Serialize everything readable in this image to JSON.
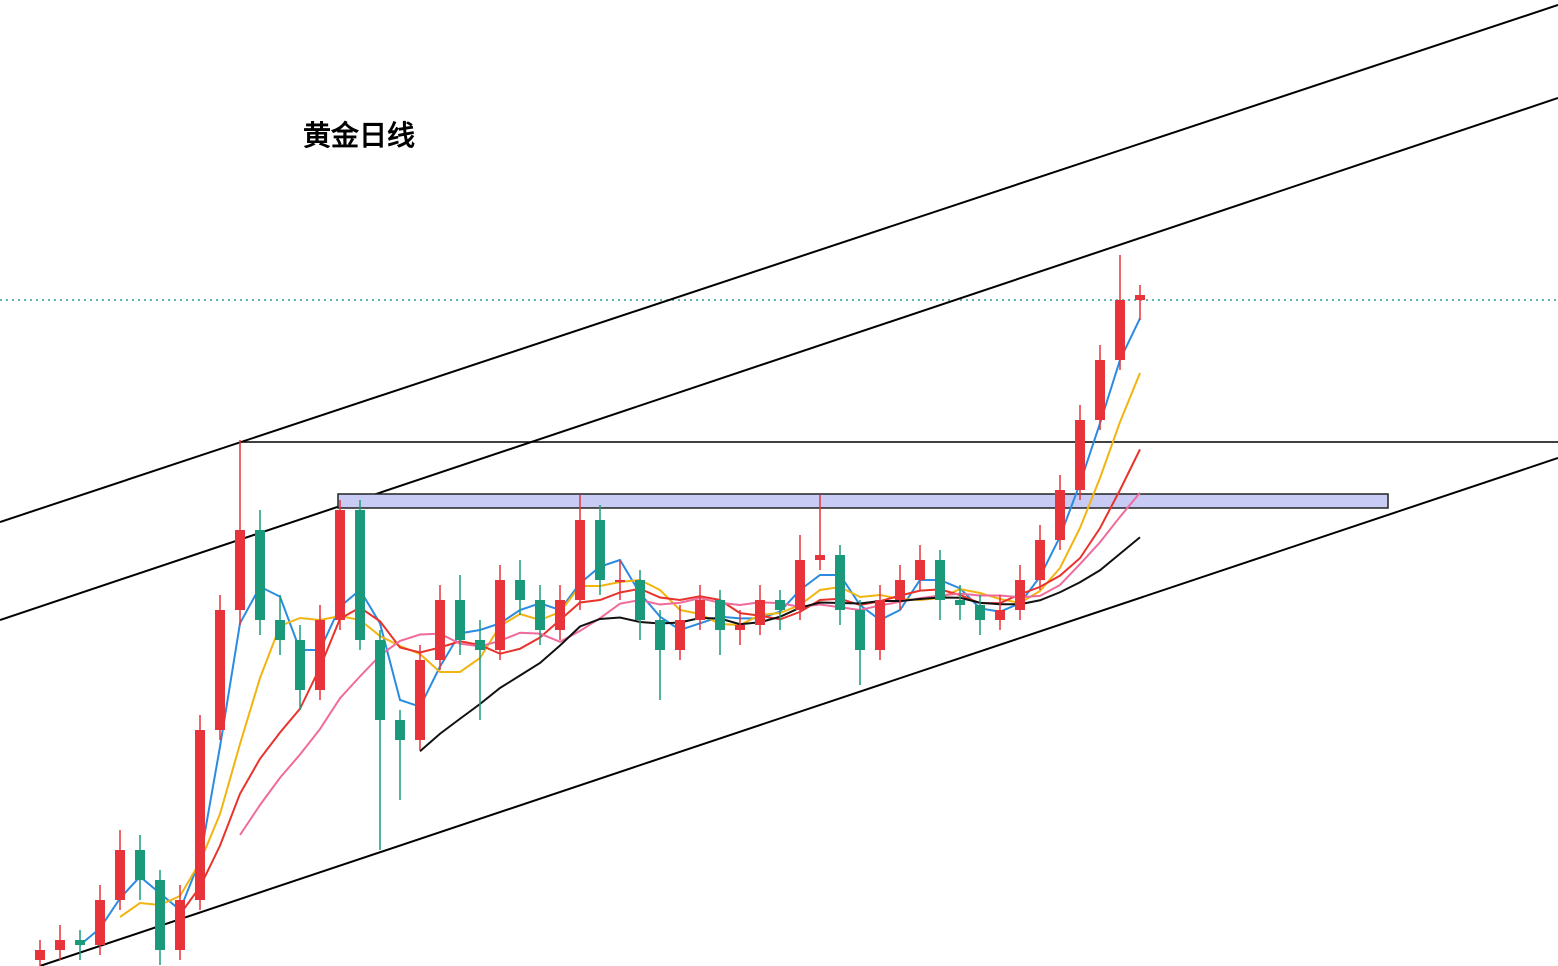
{
  "chart_data": {
    "type": "candlestick",
    "title": "黄金日线",
    "ylim": [
      1534,
      2500
    ],
    "up_color": "#e8333a",
    "down_color": "#1a9a7a",
    "ohlc": [
      [
        1540,
        1560,
        1530,
        1550
      ],
      [
        1550,
        1575,
        1540,
        1560
      ],
      [
        1560,
        1570,
        1540,
        1555
      ],
      [
        1555,
        1615,
        1545,
        1600
      ],
      [
        1600,
        1670,
        1590,
        1650
      ],
      [
        1650,
        1665,
        1600,
        1620
      ],
      [
        1620,
        1630,
        1535,
        1550
      ],
      [
        1550,
        1615,
        1540,
        1600
      ],
      [
        1600,
        1785,
        1590,
        1770
      ],
      [
        1770,
        1905,
        1760,
        1890
      ],
      [
        1890,
        2060,
        1875,
        1970
      ],
      [
        1970,
        1990,
        1865,
        1880
      ],
      [
        1880,
        1905,
        1845,
        1860
      ],
      [
        1860,
        1875,
        1790,
        1810
      ],
      [
        1810,
        1895,
        1800,
        1880
      ],
      [
        1880,
        2000,
        1870,
        1990
      ],
      [
        1990,
        2000,
        1850,
        1860
      ],
      [
        1860,
        1870,
        1650,
        1780
      ],
      [
        1780,
        1790,
        1700,
        1760
      ],
      [
        1760,
        1855,
        1750,
        1840
      ],
      [
        1840,
        1915,
        1830,
        1900
      ],
      [
        1900,
        1925,
        1845,
        1860
      ],
      [
        1860,
        1880,
        1780,
        1850
      ],
      [
        1850,
        1935,
        1840,
        1920
      ],
      [
        1920,
        1940,
        1885,
        1900
      ],
      [
        1900,
        1915,
        1855,
        1870
      ],
      [
        1870,
        1915,
        1860,
        1900
      ],
      [
        1900,
        2005,
        1890,
        1980
      ],
      [
        1980,
        1995,
        1905,
        1920
      ],
      [
        1920,
        1940,
        1900,
        1920
      ],
      [
        1920,
        1930,
        1860,
        1880
      ],
      [
        1880,
        1890,
        1800,
        1850
      ],
      [
        1850,
        1895,
        1840,
        1880
      ],
      [
        1880,
        1915,
        1870,
        1900
      ],
      [
        1900,
        1910,
        1845,
        1870
      ],
      [
        1870,
        1890,
        1855,
        1875
      ],
      [
        1875,
        1915,
        1865,
        1900
      ],
      [
        1900,
        1910,
        1870,
        1890
      ],
      [
        1890,
        1965,
        1880,
        1940
      ],
      [
        1940,
        2005,
        1930,
        1945
      ],
      [
        1945,
        1955,
        1875,
        1890
      ],
      [
        1890,
        1900,
        1815,
        1850
      ],
      [
        1850,
        1915,
        1840,
        1900
      ],
      [
        1900,
        1935,
        1890,
        1920
      ],
      [
        1920,
        1955,
        1910,
        1940
      ],
      [
        1940,
        1950,
        1880,
        1900
      ],
      [
        1900,
        1915,
        1880,
        1895
      ],
      [
        1895,
        1905,
        1865,
        1880
      ],
      [
        1880,
        1905,
        1870,
        1890
      ],
      [
        1890,
        1935,
        1880,
        1920
      ],
      [
        1920,
        1975,
        1910,
        1960
      ],
      [
        1960,
        2025,
        1950,
        2010
      ],
      [
        2010,
        2095,
        2000,
        2080
      ],
      [
        2080,
        2155,
        2070,
        2140
      ],
      [
        2140,
        2245,
        2130,
        2200
      ],
      [
        2200,
        2215,
        2180,
        2205
      ]
    ],
    "moving_averages": [
      {
        "period": 3,
        "color": "#2a8be0"
      },
      {
        "period": 5,
        "color": "#f2b410"
      },
      {
        "period": 8,
        "color": "#e8332c"
      },
      {
        "period": 11,
        "color": "#f06a9c"
      },
      {
        "period": 20,
        "color": "#111111"
      }
    ]
  }
}
